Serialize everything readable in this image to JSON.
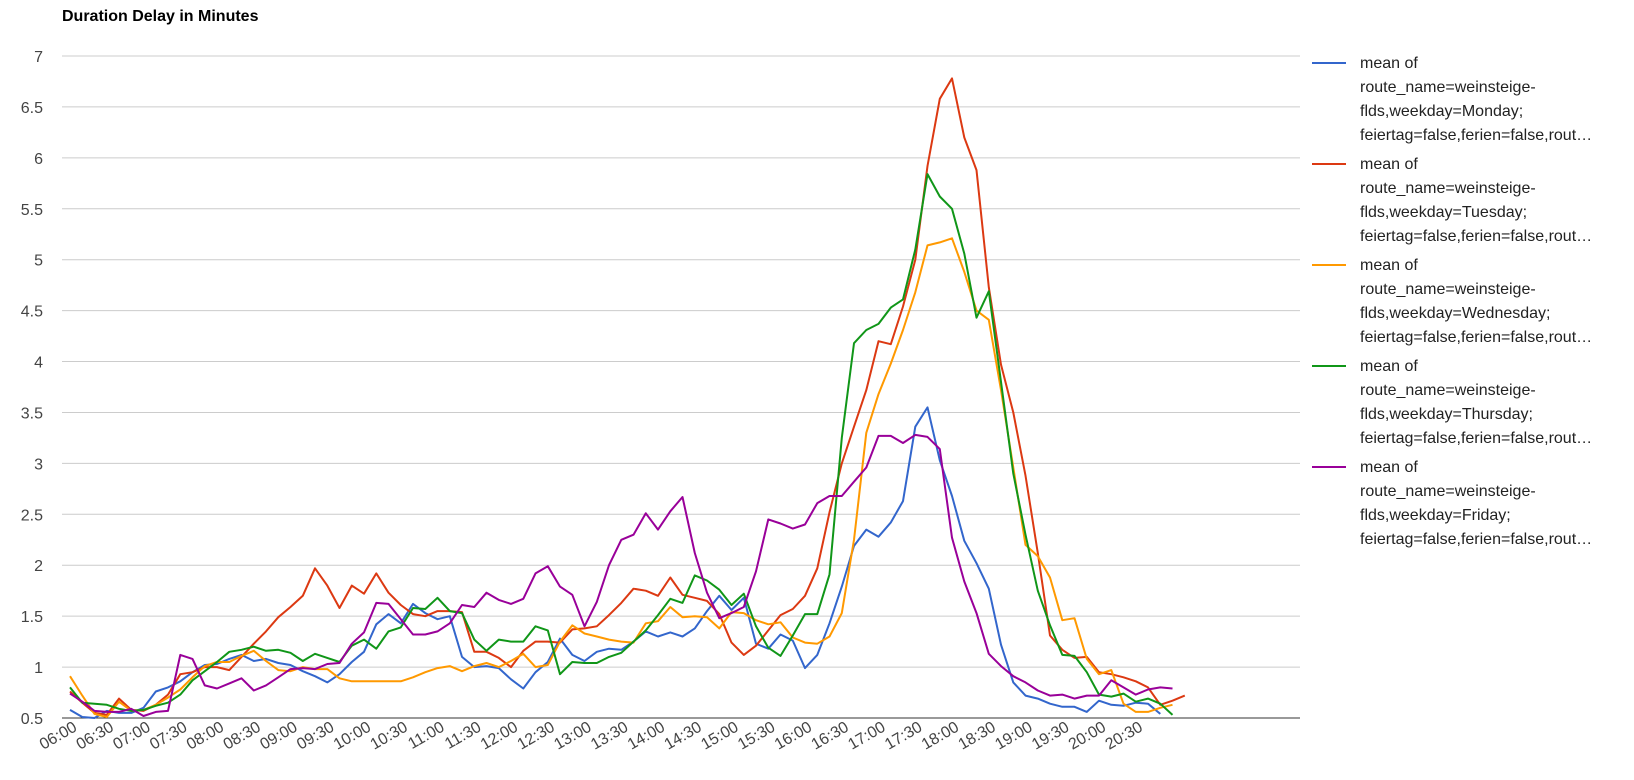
{
  "chart_data": {
    "type": "line",
    "title": "Duration Delay in Minutes",
    "xlabel": "",
    "ylabel": "",
    "ylim": [
      0.5,
      7
    ],
    "yticks": [
      "0.5",
      "1",
      "1.5",
      "2",
      "2.5",
      "3",
      "3.5",
      "4",
      "4.5",
      "5",
      "5.5",
      "6",
      "6.5",
      "7"
    ],
    "x_start": "06:00",
    "x_step_minutes": 10,
    "x_tick_labels": [
      "06:00",
      "06:30",
      "07:00",
      "07:30",
      "08:00",
      "08:30",
      "09:00",
      "09:30",
      "10:00",
      "10:30",
      "11:00",
      "11:30",
      "12:00",
      "12:30",
      "13:00",
      "13:30",
      "14:00",
      "14:30",
      "15:00",
      "15:30",
      "16:00",
      "16:30",
      "17:00",
      "17:30",
      "18:00",
      "18:30",
      "19:00",
      "19:30",
      "20:00",
      "20:30"
    ],
    "grid": true,
    "legend_position": "right",
    "series": [
      {
        "name": "mean of route_name=weinsteige-flds,weekday=Monday; feiertag=false,ferien=false,rout…",
        "legend_lines": [
          "mean of",
          "route_name=weinsteige-",
          "flds,weekday=Monday;",
          "feiertag=false,ferien=false,rout…"
        ],
        "color": "#3366cc",
        "values": [
          0.58,
          0.51,
          0.5,
          0.57,
          0.55,
          0.55,
          0.6,
          0.76,
          0.8,
          0.86,
          0.95,
          1.02,
          1.03,
          1.08,
          1.12,
          1.06,
          1.08,
          1.04,
          1.02,
          0.96,
          0.91,
          0.85,
          0.93,
          1.05,
          1.15,
          1.42,
          1.52,
          1.43,
          1.62,
          1.53,
          1.47,
          1.5,
          1.1,
          1.0,
          1.01,
          0.99,
          0.88,
          0.79,
          0.95,
          1.05,
          1.28,
          1.12,
          1.06,
          1.15,
          1.18,
          1.17,
          1.25,
          1.35,
          1.3,
          1.34,
          1.3,
          1.38,
          1.55,
          1.7,
          1.56,
          1.68,
          1.23,
          1.18,
          1.32,
          1.26,
          0.99,
          1.12,
          1.43,
          1.79,
          2.19,
          2.35,
          2.28,
          2.42,
          2.63,
          3.36,
          3.55,
          3.03,
          2.68,
          2.24,
          2.02,
          1.77,
          1.22,
          0.85,
          0.72,
          0.69,
          0.64,
          0.61,
          0.61,
          0.56,
          0.67,
          0.63,
          0.62,
          0.65,
          0.64,
          0.54
        ]
      },
      {
        "name": "mean of route_name=weinsteige-flds,weekday=Tuesday; feiertag=false,ferien=false,rout…",
        "legend_lines": [
          "mean of",
          "route_name=weinsteige-",
          "flds,weekday=Tuesday;",
          "feiertag=false,ferien=false,rout…"
        ],
        "color": "#dc3912",
        "values": [
          0.76,
          0.65,
          0.55,
          0.53,
          0.69,
          0.58,
          0.57,
          0.63,
          0.73,
          0.93,
          0.95,
          1.0,
          1.0,
          0.97,
          1.1,
          1.23,
          1.35,
          1.49,
          1.59,
          1.7,
          1.97,
          1.8,
          1.58,
          1.8,
          1.72,
          1.92,
          1.73,
          1.61,
          1.52,
          1.5,
          1.55,
          1.55,
          1.54,
          1.15,
          1.15,
          1.09,
          1.0,
          1.16,
          1.25,
          1.25,
          1.24,
          1.37,
          1.38,
          1.4,
          1.51,
          1.63,
          1.77,
          1.75,
          1.7,
          1.88,
          1.71,
          1.68,
          1.65,
          1.52,
          1.24,
          1.12,
          1.21,
          1.36,
          1.51,
          1.57,
          1.7,
          1.97,
          2.52,
          3.0,
          3.36,
          3.72,
          4.2,
          4.17,
          4.54,
          5.0,
          5.92,
          6.58,
          6.78,
          6.2,
          5.88,
          4.73,
          3.97,
          3.5,
          2.88,
          2.12,
          1.31,
          1.17,
          1.09,
          1.1,
          0.95,
          0.93,
          0.9,
          0.86,
          0.8,
          0.63,
          0.67,
          0.72
        ]
      },
      {
        "name": "mean of route_name=weinsteige-flds,weekday=Wednesday; feiertag=false,ferien=false,rout…",
        "legend_lines": [
          "mean of",
          "route_name=weinsteige-",
          "flds,weekday=Wednesday;",
          "feiertag=false,ferien=false,rout…"
        ],
        "color": "#ff9900",
        "values": [
          0.91,
          0.72,
          0.54,
          0.51,
          0.66,
          0.57,
          0.58,
          0.63,
          0.7,
          0.78,
          0.9,
          1.01,
          1.05,
          1.05,
          1.11,
          1.16,
          1.06,
          0.97,
          0.96,
          1.0,
          0.98,
          0.98,
          0.89,
          0.86,
          0.86,
          0.86,
          0.86,
          0.86,
          0.9,
          0.95,
          0.99,
          1.01,
          0.96,
          1.01,
          1.04,
          1.0,
          1.06,
          1.13,
          1.0,
          1.02,
          1.25,
          1.41,
          1.33,
          1.3,
          1.27,
          1.25,
          1.24,
          1.43,
          1.45,
          1.59,
          1.49,
          1.5,
          1.49,
          1.38,
          1.54,
          1.53,
          1.46,
          1.42,
          1.44,
          1.29,
          1.24,
          1.23,
          1.3,
          1.53,
          2.25,
          3.3,
          3.68,
          3.98,
          4.31,
          4.68,
          5.14,
          5.17,
          5.21,
          4.88,
          4.5,
          4.41,
          3.72,
          2.96,
          2.2,
          2.09,
          1.88,
          1.46,
          1.48,
          1.08,
          0.93,
          0.97,
          0.64,
          0.56,
          0.56,
          0.6,
          0.63
        ]
      },
      {
        "name": "mean of route_name=weinsteige-flds,weekday=Thursday; feiertag=false,ferien=false,rout…",
        "legend_lines": [
          "mean of",
          "route_name=weinsteige-",
          "flds,weekday=Thursday;",
          "feiertag=false,ferien=false,rout…"
        ],
        "color": "#109618",
        "values": [
          0.8,
          0.65,
          0.64,
          0.63,
          0.59,
          0.57,
          0.58,
          0.62,
          0.65,
          0.73,
          0.87,
          0.96,
          1.05,
          1.15,
          1.17,
          1.2,
          1.16,
          1.17,
          1.14,
          1.06,
          1.13,
          1.09,
          1.05,
          1.21,
          1.27,
          1.18,
          1.35,
          1.39,
          1.58,
          1.57,
          1.68,
          1.55,
          1.53,
          1.27,
          1.16,
          1.27,
          1.25,
          1.25,
          1.4,
          1.36,
          0.93,
          1.05,
          1.04,
          1.04,
          1.1,
          1.14,
          1.25,
          1.36,
          1.51,
          1.67,
          1.63,
          1.9,
          1.85,
          1.76,
          1.61,
          1.72,
          1.4,
          1.19,
          1.11,
          1.31,
          1.52,
          1.52,
          1.91,
          3.25,
          4.18,
          4.31,
          4.37,
          4.53,
          4.61,
          5.1,
          5.84,
          5.62,
          5.5,
          5.06,
          4.43,
          4.69,
          3.8,
          2.9,
          2.3,
          1.75,
          1.41,
          1.12,
          1.11,
          0.95,
          0.73,
          0.71,
          0.74,
          0.66,
          0.69,
          0.64,
          0.53
        ]
      },
      {
        "name": "mean of route_name=weinsteige-flds,weekday=Friday; feiertag=false,ferien=false,rout…",
        "legend_lines": [
          "mean of",
          "route_name=weinsteige-",
          "flds,weekday=Friday;",
          "feiertag=false,ferien=false,rout…"
        ],
        "color": "#990099",
        "values": [
          0.74,
          0.66,
          0.57,
          0.56,
          0.56,
          0.59,
          0.52,
          0.56,
          0.57,
          1.12,
          1.08,
          0.82,
          0.79,
          0.84,
          0.89,
          0.77,
          0.82,
          0.9,
          0.98,
          0.99,
          0.98,
          1.03,
          1.04,
          1.23,
          1.34,
          1.63,
          1.62,
          1.47,
          1.32,
          1.32,
          1.35,
          1.43,
          1.61,
          1.59,
          1.73,
          1.66,
          1.62,
          1.67,
          1.92,
          1.99,
          1.79,
          1.71,
          1.4,
          1.64,
          2.0,
          2.25,
          2.3,
          2.51,
          2.35,
          2.53,
          2.67,
          2.12,
          1.73,
          1.48,
          1.53,
          1.59,
          1.94,
          2.45,
          2.41,
          2.36,
          2.4,
          2.61,
          2.68,
          2.68,
          2.82,
          2.96,
          3.27,
          3.27,
          3.2,
          3.28,
          3.26,
          3.14,
          2.27,
          1.84,
          1.53,
          1.13,
          1.01,
          0.91,
          0.85,
          0.77,
          0.72,
          0.73,
          0.69,
          0.72,
          0.72,
          0.87,
          0.8,
          0.73,
          0.78,
          0.8,
          0.79
        ]
      }
    ]
  }
}
